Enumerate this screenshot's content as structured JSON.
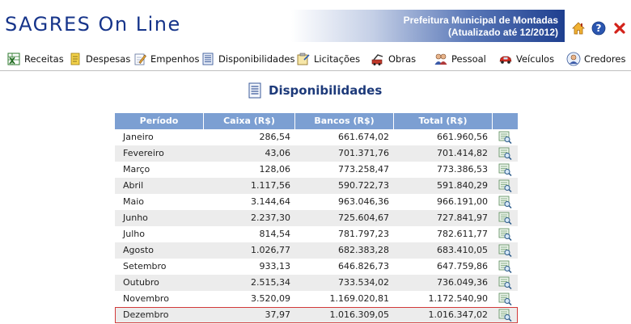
{
  "header": {
    "logo": "SAGRES On Line",
    "org_name": "Prefeitura Municipal de Montadas",
    "updated": "(Atualizado até 12/2012)"
  },
  "nav": {
    "items": [
      {
        "label": "Receitas",
        "icon": "spreadsheet-icon"
      },
      {
        "label": "Despesas",
        "icon": "document-icon"
      },
      {
        "label": "Empenhos",
        "icon": "pencil-document-icon"
      },
      {
        "label": "Disponibilidades",
        "icon": "list-document-icon"
      },
      {
        "label": "Licitações",
        "icon": "clipboard-icon"
      },
      {
        "label": "Obras",
        "icon": "construction-icon"
      },
      {
        "label": "Pessoal",
        "icon": "people-icon"
      },
      {
        "label": "Veículos",
        "icon": "car-icon"
      },
      {
        "label": "Credores",
        "icon": "user-icon"
      }
    ]
  },
  "page": {
    "title": "Disponibilidades"
  },
  "table": {
    "headers": [
      "Período",
      "Caixa (R$)",
      "Bancos (R$)",
      "Total (R$)",
      ""
    ],
    "rows": [
      [
        "Janeiro",
        "286,54",
        "661.674,02",
        "661.960,56"
      ],
      [
        "Fevereiro",
        "43,06",
        "701.371,76",
        "701.414,82"
      ],
      [
        "Março",
        "128,06",
        "773.258,47",
        "773.386,53"
      ],
      [
        "Abril",
        "1.117,56",
        "590.722,73",
        "591.840,29"
      ],
      [
        "Maio",
        "3.144,64",
        "963.046,36",
        "966.191,00"
      ],
      [
        "Junho",
        "2.237,30",
        "725.604,67",
        "727.841,97"
      ],
      [
        "Julho",
        "814,54",
        "781.797,23",
        "782.611,77"
      ],
      [
        "Agosto",
        "1.026,77",
        "682.383,28",
        "683.410,05"
      ],
      [
        "Setembro",
        "933,13",
        "646.826,73",
        "647.759,86"
      ],
      [
        "Outubro",
        "2.515,34",
        "733.534,02",
        "736.049,36"
      ],
      [
        "Novembro",
        "3.520,09",
        "1.169.020,81",
        "1.172.540,90"
      ],
      [
        "Dezembro",
        "37,97",
        "1.016.309,05",
        "1.016.347,02"
      ]
    ],
    "highlighted_row": "Dezembro"
  },
  "colors": {
    "header_blue": "#1e3f8f",
    "table_header": "#7c9fd2",
    "title_blue": "#1d3a7a",
    "highlight_border": "#d23a3a"
  }
}
